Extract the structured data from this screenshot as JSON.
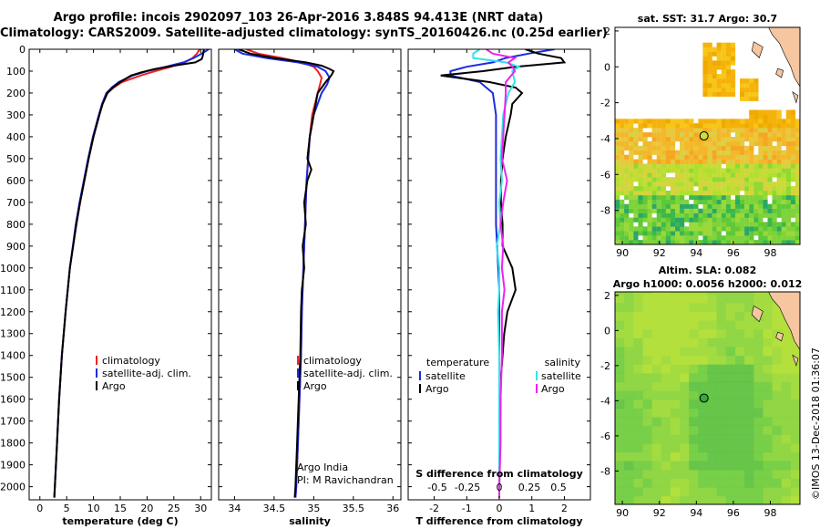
{
  "header": {
    "title_line1": "Argo profile: incois 2902097_103 26-Apr-2016 3.848S 94.413E (NRT data)",
    "title_line2": "Climatology: CARS2009. Satellite-adjusted climatology: synTS_20160426.nc (0.25d earlier)"
  },
  "colors": {
    "climatology": "#ee2222",
    "satellite": "#1a2be0",
    "argo": "#000000",
    "salinity_satellite": "#33e0ee",
    "salinity_argo": "#ee22ee",
    "land": "#f5c6a0",
    "marker": "#3aa83a"
  },
  "depth_axis": {
    "ticks": [
      0,
      100,
      200,
      300,
      400,
      500,
      600,
      700,
      800,
      900,
      1000,
      1100,
      1200,
      1300,
      1400,
      1500,
      1600,
      1700,
      1800,
      1900,
      2000
    ],
    "ylim": [
      0,
      2060
    ]
  },
  "chart_data": [
    {
      "type": "line",
      "panel": "temperature",
      "xlabel": "temperature (deg C)",
      "xlim": [
        -2,
        32
      ],
      "xticks": [
        0,
        5,
        10,
        15,
        20,
        25,
        30
      ],
      "legend": [
        "climatology",
        "satellite-adj. clim.",
        "Argo"
      ],
      "series": [
        {
          "name": "climatology",
          "depth": [
            0,
            20,
            40,
            60,
            80,
            100,
            120,
            150,
            175,
            200,
            250,
            300,
            400,
            500,
            600,
            700,
            800,
            1000,
            1200,
            1400,
            1600,
            1800,
            2000,
            2050
          ],
          "values": [
            29.8,
            29.3,
            28.5,
            27.0,
            24.5,
            21.5,
            18.8,
            15.3,
            13.8,
            12.6,
            11.7,
            11.1,
            10.0,
            9.1,
            8.3,
            7.5,
            6.8,
            5.6,
            4.8,
            4.1,
            3.6,
            3.2,
            2.8,
            2.7
          ]
        },
        {
          "name": "satellite-adj. clim.",
          "depth": [
            0,
            20,
            40,
            60,
            80,
            100,
            120,
            150,
            175,
            200,
            250,
            300,
            400,
            500,
            600,
            700,
            800,
            1000,
            1200,
            1400,
            1600,
            1800,
            2000,
            2050
          ],
          "values": [
            31.5,
            30.2,
            28.7,
            26.8,
            23.5,
            20.0,
            17.3,
            14.7,
            13.4,
            12.4,
            11.6,
            11.0,
            9.9,
            9.0,
            8.2,
            7.4,
            6.7,
            5.6,
            4.8,
            4.1,
            3.6,
            3.2,
            2.8,
            2.7
          ]
        },
        {
          "name": "Argo",
          "depth": [
            0,
            15,
            30,
            45,
            60,
            75,
            90,
            105,
            120,
            150,
            175,
            200,
            250,
            300,
            400,
            500,
            600,
            700,
            800,
            1000,
            1200,
            1400,
            1600,
            1800,
            2000,
            2050
          ],
          "values": [
            30.6,
            30.5,
            30.4,
            30.2,
            29.0,
            25.0,
            21.5,
            19.0,
            17.0,
            15.0,
            13.6,
            12.6,
            11.7,
            11.1,
            10.0,
            9.1,
            8.3,
            7.5,
            6.8,
            5.6,
            4.8,
            4.1,
            3.6,
            3.2,
            2.8,
            2.7
          ]
        }
      ]
    },
    {
      "type": "line",
      "panel": "salinity",
      "xlabel": "salinity",
      "xlim": [
        33.8,
        36.1
      ],
      "xticks": [
        34,
        34.5,
        35,
        35.5,
        36
      ],
      "legend": [
        "climatology",
        "satellite-adj. clim.",
        "Argo"
      ],
      "annotations": [
        "Argo India",
        "PI: M Ravichandran"
      ],
      "series": [
        {
          "name": "climatology",
          "depth": [
            0,
            20,
            40,
            60,
            80,
            100,
            130,
            160,
            200,
            300,
            400,
            500,
            600,
            800,
            1000,
            1200,
            1400,
            1600,
            1800,
            2000,
            2050
          ],
          "values": [
            34.15,
            34.3,
            34.6,
            34.85,
            35.0,
            35.05,
            35.1,
            35.08,
            35.05,
            34.98,
            34.95,
            34.93,
            34.91,
            34.89,
            34.87,
            34.85,
            34.84,
            34.82,
            34.8,
            34.78,
            34.77
          ]
        },
        {
          "name": "satellite-adj. clim.",
          "depth": [
            0,
            20,
            40,
            60,
            80,
            100,
            130,
            160,
            200,
            300,
            400,
            500,
            600,
            800,
            1000,
            1200,
            1400,
            1600,
            1800,
            2000,
            2050
          ],
          "values": [
            34.0,
            34.1,
            34.4,
            34.8,
            35.05,
            35.15,
            35.2,
            35.17,
            35.1,
            35.0,
            34.95,
            34.93,
            34.91,
            34.89,
            34.87,
            34.85,
            34.84,
            34.82,
            34.8,
            34.78,
            34.77
          ]
        },
        {
          "name": "Argo",
          "depth": [
            0,
            20,
            40,
            60,
            75,
            90,
            100,
            120,
            150,
            200,
            300,
            400,
            500,
            550,
            600,
            700,
            800,
            900,
            1000,
            1100,
            1200,
            1400,
            1600,
            1800,
            2000,
            2050
          ],
          "values": [
            34.05,
            34.2,
            34.5,
            34.9,
            35.1,
            35.2,
            35.25,
            35.22,
            35.15,
            35.05,
            35.0,
            34.95,
            34.92,
            34.97,
            34.92,
            34.88,
            34.9,
            34.86,
            34.88,
            34.85,
            34.84,
            34.83,
            34.81,
            34.79,
            34.77,
            34.76
          ]
        }
      ]
    },
    {
      "type": "line",
      "panel": "difference",
      "xlabel": "T difference from climatology",
      "xlim": [
        -2.8,
        2.8
      ],
      "xticks": [
        -2,
        -1,
        0,
        1,
        2
      ],
      "secondary_label": "S difference from climatology",
      "secondary_ticks": [
        "-0.5",
        "-0.25",
        "0",
        "0.25",
        "0.5"
      ],
      "legend_headers": [
        "temperature",
        "salinity"
      ],
      "legend_left": [
        "satellite",
        "Argo"
      ],
      "legend_right": [
        "satellite",
        "Argo"
      ],
      "series": [
        {
          "name": "T satellite",
          "depth": [
            0,
            20,
            40,
            60,
            80,
            100,
            120,
            150,
            175,
            200,
            300,
            500,
            800,
            1100,
            1500,
            2000,
            2050
          ],
          "values": [
            1.7,
            0.9,
            0.2,
            -0.2,
            -1.0,
            -1.5,
            -1.5,
            -0.6,
            -0.4,
            -0.2,
            -0.1,
            -0.1,
            -0.1,
            0,
            0,
            0,
            0
          ]
        },
        {
          "name": "T Argo",
          "depth": [
            0,
            20,
            40,
            60,
            80,
            100,
            120,
            150,
            175,
            200,
            250,
            300,
            400,
            500,
            600,
            700,
            800,
            900,
            1000,
            1100,
            1200,
            1300,
            1500,
            1800,
            2000,
            2050
          ],
          "values": [
            0.8,
            1.2,
            1.9,
            2.0,
            0.5,
            -0.5,
            -1.8,
            -0.3,
            0.5,
            0.7,
            0.4,
            0.35,
            0.2,
            0.1,
            0.05,
            0.05,
            0.1,
            0.1,
            0.4,
            0.5,
            0.25,
            0.15,
            0.05,
            0.02,
            0,
            0
          ]
        },
        {
          "name": "S satellite",
          "depth": [
            0,
            20,
            40,
            60,
            80,
            100,
            150,
            200,
            300,
            400,
            500,
            600,
            700,
            800,
            900,
            1000,
            1100,
            1200,
            1400,
            1600,
            1800,
            2000,
            2050
          ],
          "values": [
            -0.15,
            -0.2,
            -0.2,
            0.05,
            0.15,
            0.1,
            0.12,
            0.07,
            0.03,
            0.02,
            0.01,
            0.02,
            0.0,
            0.01,
            -0.02,
            0.0,
            0.0,
            -0.01,
            0.0,
            0.0,
            0.0,
            0.0,
            0.0
          ]
        },
        {
          "name": "S Argo",
          "depth": [
            0,
            20,
            40,
            60,
            80,
            100,
            150,
            200,
            300,
            400,
            500,
            600,
            700,
            800,
            900,
            1000,
            1100,
            1200,
            1400,
            1600,
            1800,
            2000,
            2050
          ],
          "values": [
            -0.1,
            -0.05,
            0.12,
            0.07,
            0.1,
            0.12,
            0.05,
            0.05,
            0.04,
            0.03,
            0.02,
            0.06,
            0.03,
            0.01,
            0.03,
            0.02,
            0.04,
            0.02,
            0.02,
            0.01,
            0.01,
            0.0,
            0.0
          ]
        }
      ]
    },
    {
      "type": "heatmap",
      "panel": "sst-map",
      "title": "sat. SST: 31.7 Argo: 30.7",
      "xticks": [
        90,
        92,
        94,
        96,
        98
      ],
      "yticks": [
        2,
        0,
        -2,
        -4,
        -6,
        -8
      ],
      "xlim": [
        89.6,
        99.6
      ],
      "ylim": [
        -9.9,
        2.2
      ],
      "argo_position": {
        "lon": 94.413,
        "lat": -3.848
      }
    },
    {
      "type": "heatmap",
      "panel": "sla-map",
      "title_line1": "Altim. SLA: 0.082",
      "title_line2": "Argo h1000: 0.0056 h2000: 0.012",
      "xticks": [
        90,
        92,
        94,
        96,
        98
      ],
      "yticks": [
        2,
        0,
        -2,
        -4,
        -6,
        -8
      ],
      "xlim": [
        89.6,
        99.6
      ],
      "ylim": [
        -9.9,
        2.2
      ],
      "argo_position": {
        "lon": 94.413,
        "lat": -3.848
      }
    }
  ],
  "credit": "©IMOS 13-Dec-2018 01:36:07"
}
